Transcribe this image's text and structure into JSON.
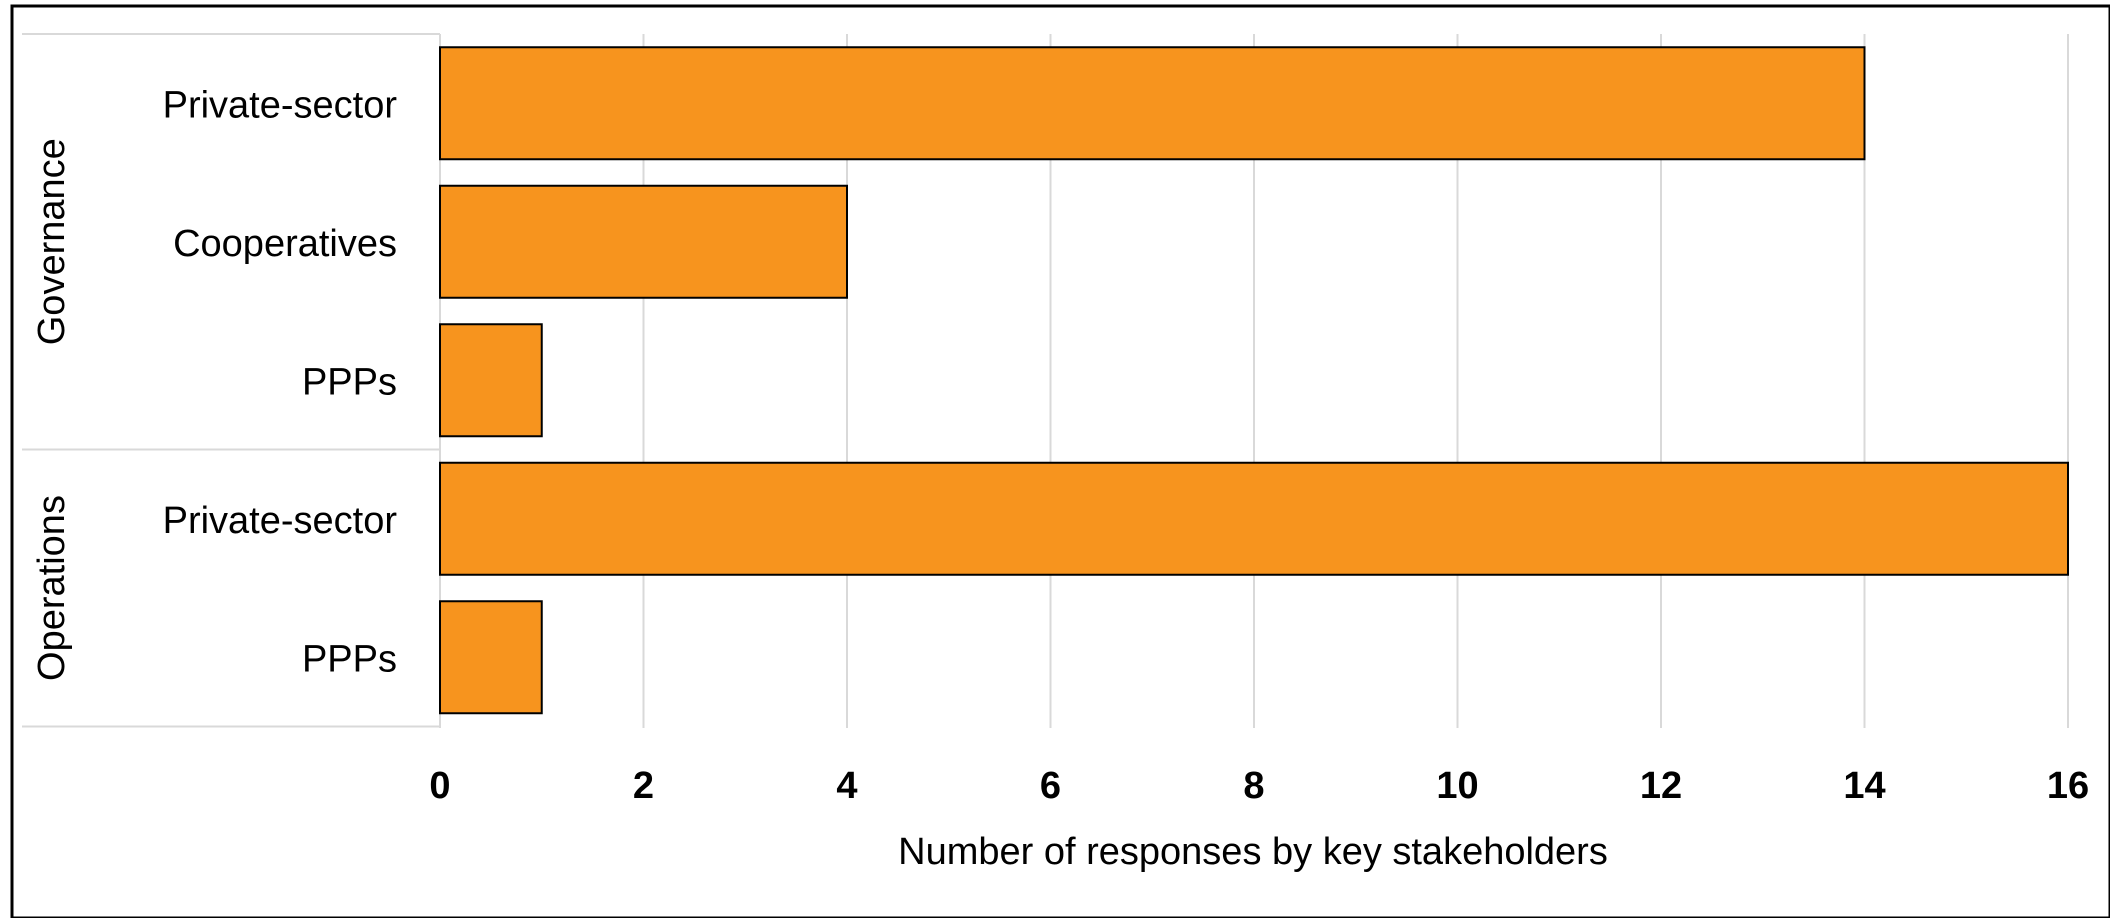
{
  "chart_data": {
    "type": "bar",
    "orientation": "horizontal",
    "groups": [
      {
        "name": "Governance",
        "categories": [
          "Private-sector",
          "Cooperatives",
          "PPPs"
        ],
        "values": [
          14,
          4,
          1
        ]
      },
      {
        "name": "Operations",
        "categories": [
          "Private-sector",
          "PPPs"
        ],
        "values": [
          16,
          1
        ]
      }
    ],
    "xlabel": "Number of responses by key stakeholders",
    "ylabel": "",
    "title": "",
    "xlim": [
      0,
      16
    ],
    "xticks": [
      "0",
      "2",
      "4",
      "6",
      "8",
      "10",
      "12",
      "14",
      "16"
    ],
    "grid": true,
    "legend": "none",
    "colors": {
      "bar": "#F7941E",
      "bar_border": "#000000",
      "grid": "#d9d9d9",
      "frame": "#000000"
    }
  }
}
